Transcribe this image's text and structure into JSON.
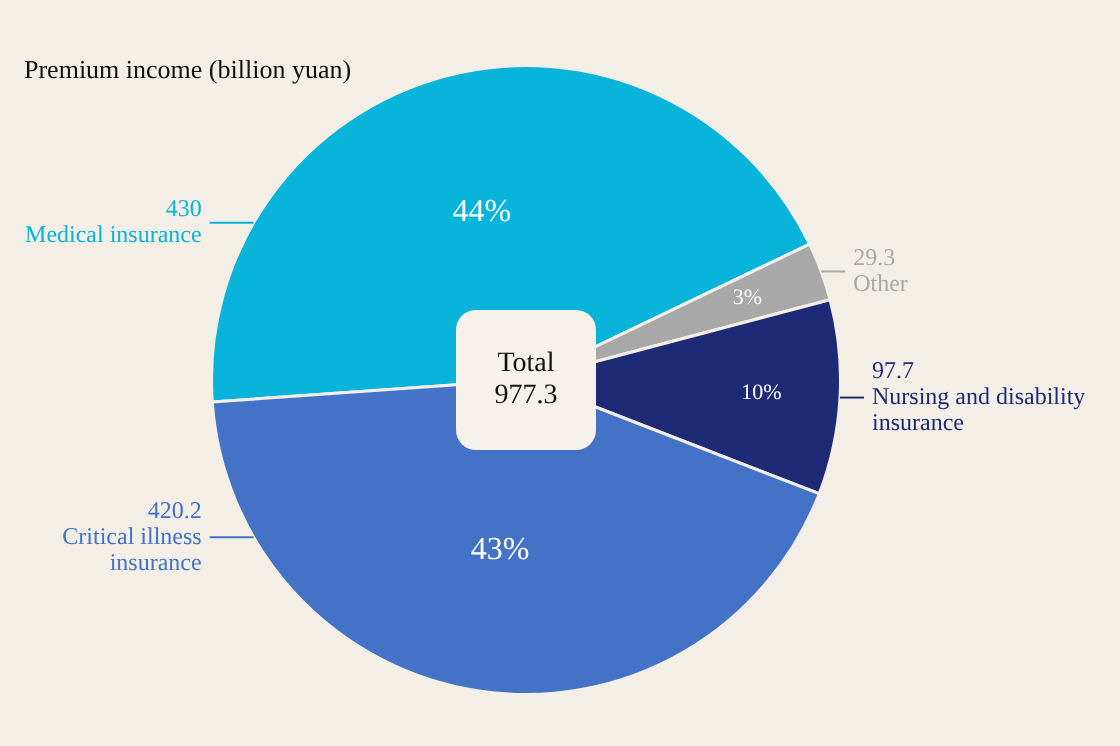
{
  "chart_data": {
    "type": "pie",
    "title": "Premium income (billion yuan)",
    "categories": [
      "Medical insurance",
      "Other",
      "Nursing and disability insurance",
      "Critical illness insurance"
    ],
    "values": [
      430,
      29.3,
      97.7,
      420.2
    ],
    "colors": [
      "#08b4da",
      "#a8a8a8",
      "#1f2a77",
      "#4472c6"
    ],
    "value_labels": [
      "430",
      "29.3",
      "97.7",
      "420.2"
    ],
    "annotations": [
      "Total\n977.3",
      {
        "text": "44%",
        "x": "Medical insurance"
      },
      {
        "text": "3%",
        "x": "Other"
      },
      {
        "text": "10%",
        "x": "Nursing and disability insurance"
      },
      {
        "text": "43%",
        "x": "Critical illness insurance"
      }
    ],
    "legend": false
  }
}
